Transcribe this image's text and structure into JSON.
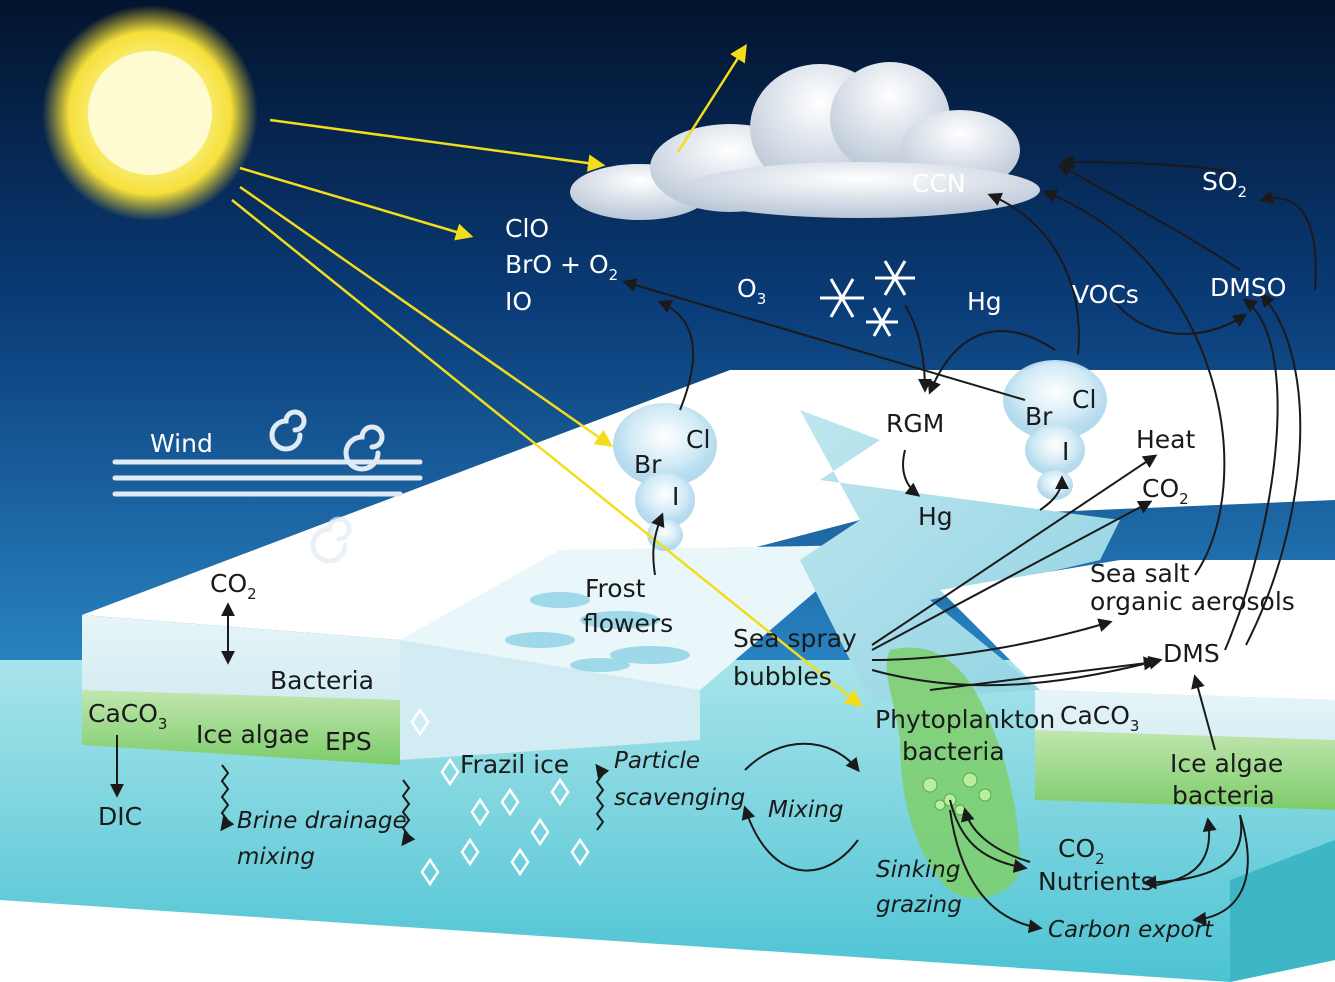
{
  "labels": {
    "clo": "ClO",
    "bro_o2": "BrO + O",
    "bro_o2_sub": "2",
    "io": "IO",
    "o3": "O",
    "o3_sub": "3",
    "hg_air": "Hg",
    "vocs": "VOCs",
    "dmso": "DMSO",
    "ccn": "CCN",
    "so2": "SO",
    "so2_sub": "2",
    "wind": "Wind",
    "cl_left": "Cl",
    "br_left": "Br",
    "i_left": "I",
    "cl_right": "Cl",
    "br_right": "Br",
    "i_right": "I",
    "rgm": "RGM",
    "hg_lead": "Hg",
    "heat": "Heat",
    "co2_right": "CO",
    "co2_right_sub": "2",
    "sea_salt_1": "Sea salt",
    "sea_salt_2": "organic aerosols",
    "dms": "DMS",
    "co2_left": "CO",
    "co2_left_sub": "2",
    "bacteria": "Bacteria",
    "caco3_left": "CaCO",
    "caco3_left_sub": "3",
    "ice_algae_left": "Ice algae",
    "eps": "EPS",
    "dic": "DIC",
    "brine_1": "Brine drainage",
    "brine_2": "mixing",
    "frost_1": "Frost",
    "frost_2": "flowers",
    "frazil": "Frazil ice",
    "particle_1": "Particle",
    "particle_2": "scavenging",
    "spray_1": "Sea spray",
    "spray_2": "bubbles",
    "mixing": "Mixing",
    "phyto_1": "Phytoplankton",
    "phyto_2": "bacteria",
    "caco3_right": "CaCO",
    "caco3_right_sub": "3",
    "ice_algae_right_1": "Ice algae",
    "ice_algae_right_2": "bacteria",
    "co2_bottom": "CO",
    "co2_bottom_sub": "2",
    "nutrients": "Nutrients",
    "sinking_1": "Sinking",
    "sinking_2": "grazing",
    "carbon_export": "Carbon export"
  },
  "colors": {
    "sky_top": "#041a3a",
    "sky_bottom": "#1c6fb4",
    "sun": "#f7e43a",
    "sun_rays": "#f3dd1a",
    "ice_top": "#ffffff",
    "ice_side": "#d8eef3",
    "water": "#7fd2dd",
    "algae_band": "#8fd07a",
    "arrows": "#1a1a1a"
  },
  "icons": [
    "sun-icon",
    "cloud-icon",
    "snowflake-icon",
    "wind-swirl-icon",
    "halogen-plume-icon",
    "phytoplankton-bloom-icon"
  ]
}
